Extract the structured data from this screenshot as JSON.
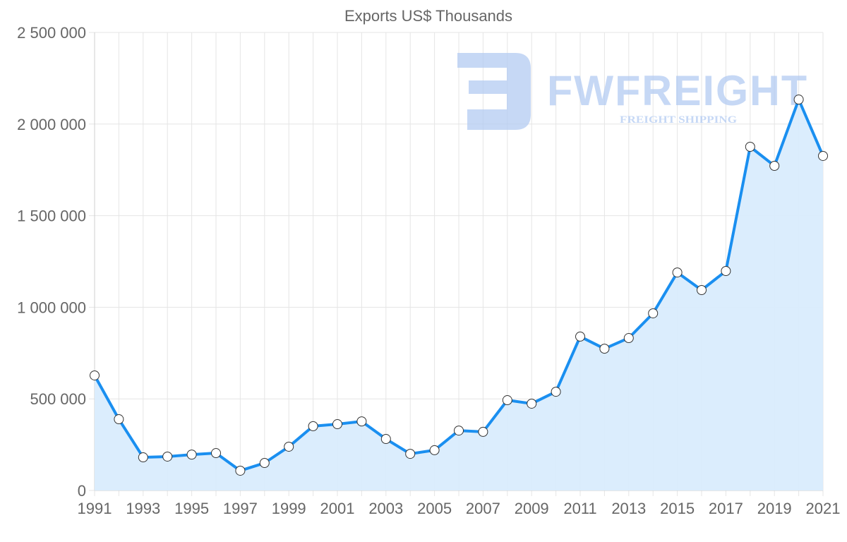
{
  "watermark": {
    "brand": "FWFREIGHT",
    "tagline": "FREIGHT SHIPPING"
  },
  "colors": {
    "line": "#1a8ff0",
    "fill": "#d9ecfd",
    "grid": "#e5e5e5",
    "text": "#666666",
    "watermark": "#b3cbf2"
  },
  "chart_data": {
    "type": "area",
    "title": "Exports US$ Thousands",
    "xlabel": "",
    "ylabel": "",
    "ylim": [
      0,
      2500000
    ],
    "yticks": [
      0,
      500000,
      1000000,
      1500000,
      2000000,
      2500000
    ],
    "ytick_labels": [
      "0",
      "500 000",
      "1 000 000",
      "1 500 000",
      "2 000 000",
      "2 500 000"
    ],
    "xtick_labels": [
      "1991",
      "1993",
      "1995",
      "1997",
      "1999",
      "2001",
      "2003",
      "2005",
      "2007",
      "2009",
      "2011",
      "2013",
      "2015",
      "2017",
      "2019",
      "2021"
    ],
    "grid": true,
    "legend": "none",
    "x": [
      1991,
      1992,
      1993,
      1994,
      1995,
      1996,
      1997,
      1998,
      1999,
      2000,
      2001,
      2002,
      2003,
      2004,
      2005,
      2006,
      2007,
      2008,
      2009,
      2010,
      2011,
      2012,
      2013,
      2014,
      2015,
      2016,
      2017,
      2018,
      2019,
      2020,
      2021
    ],
    "series": [
      {
        "name": "Exports",
        "values": [
          628000,
          389000,
          181000,
          185000,
          196000,
          204000,
          108000,
          150000,
          239000,
          351000,
          362000,
          377000,
          281000,
          200000,
          220000,
          327000,
          320000,
          493000,
          474000,
          539000,
          840000,
          774000,
          832000,
          967000,
          1190000,
          1094000,
          1198000,
          1876000,
          1772000,
          2134000,
          1826000
        ]
      }
    ]
  }
}
